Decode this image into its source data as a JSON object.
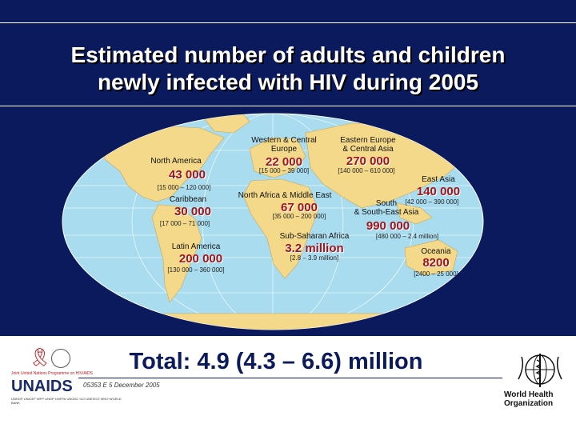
{
  "title": {
    "line1": "Estimated number of adults and children",
    "line2": "newly infected with HIV during 2005"
  },
  "colors": {
    "header_bg": "#0b1a5c",
    "ocean": "#a8dcee",
    "land": "#f4d98a",
    "value": "#a0141c",
    "total": "#0b1a5c"
  },
  "regions": [
    {
      "id": "north-america",
      "label": "North America",
      "value": "43 000",
      "range": "[15 000 – 120 000]"
    },
    {
      "id": "caribbean",
      "label": "Caribbean",
      "value": "30 000",
      "range": "[17 000 – 71 000]"
    },
    {
      "id": "latin-america",
      "label": "Latin America",
      "value": "200 000",
      "range": "[130 000 – 360 000]"
    },
    {
      "id": "western-central-europe",
      "label": "Western & Central\nEurope",
      "value": "22 000",
      "range": "[15 000 – 39 000]"
    },
    {
      "id": "north-africa-middle-east",
      "label": "North Africa & Middle East",
      "value": "67 000",
      "range": "[35 000 – 200 000]"
    },
    {
      "id": "sub-saharan-africa",
      "label": "Sub-Saharan Africa",
      "value": "3.2 million",
      "range": "[2.8 – 3.9 million]"
    },
    {
      "id": "eastern-europe-central-asia",
      "label": "Eastern Europe\n& Central Asia",
      "value": "270 000",
      "range": "[140 000 – 610 000]"
    },
    {
      "id": "east-asia",
      "label": "East Asia",
      "value": "140 000",
      "range": "[42 000 – 390 000]"
    },
    {
      "id": "south-south-east-asia",
      "label": "South\n& South-East Asia",
      "value": "990 000",
      "range": "[480 000 – 2.4 million]"
    },
    {
      "id": "oceania",
      "label": "Oceania",
      "value": "8200",
      "range": "[2400 – 25 000]"
    }
  ],
  "total": "Total: 4.9 (4.3 – 6.6) million",
  "footer": {
    "code": "05353 E 5    December 2005",
    "unaids_word": "UNAIDS",
    "unaids_tagline": "Joint United Nations Programme on HIV/AIDS",
    "unaids_cosponsors": "UNHCR·UNICEF·WFP·UNDP·UNFPA·UNODC·ILO·UNESCO·WHO·WORLD BANK",
    "who_name": "World Health\nOrganization"
  }
}
